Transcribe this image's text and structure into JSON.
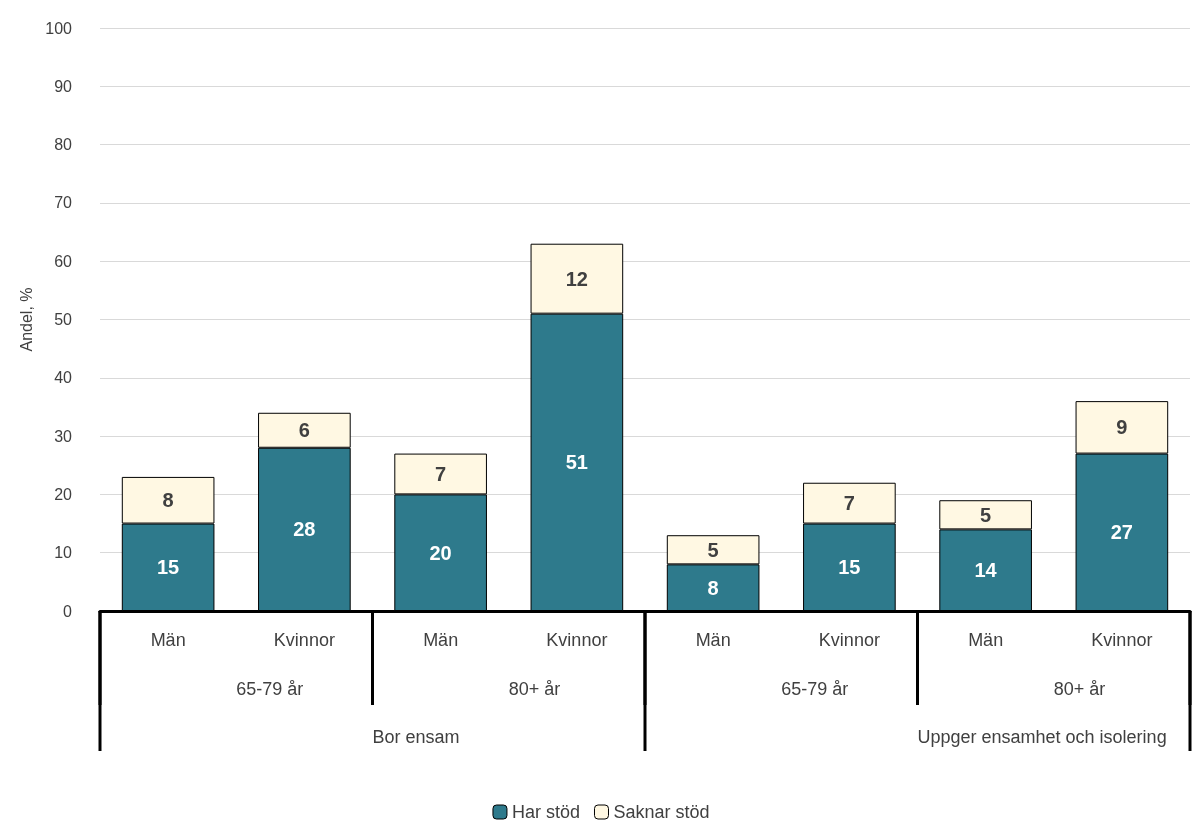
{
  "chart_data": {
    "type": "bar",
    "stacked": true,
    "ylabel": "Andel, %",
    "categories": [
      "Män",
      "Kvinnor",
      "Män",
      "Kvinnor",
      "Män",
      "Kvinnor",
      "Män",
      "Kvinnor"
    ],
    "series": [
      {
        "name": "Har stöd",
        "color": "#2e7a8c",
        "values": [
          15,
          28,
          20,
          51,
          8,
          15,
          14,
          27
        ]
      },
      {
        "name": "Saknar stöd",
        "color": "#fff8e3",
        "values": [
          8,
          6,
          7,
          12,
          5,
          7,
          5,
          9
        ]
      }
    ],
    "annotations": [
      "65-79 år",
      "80+ år",
      "65-79 år",
      "80+ år",
      "Bor ensam",
      "Uppger ensamhet och isolering"
    ],
    "ylim": [
      0,
      100
    ],
    "yticks": [
      0,
      10,
      20,
      30,
      40,
      50,
      60,
      70,
      80,
      90,
      100
    ],
    "grid": "y",
    "legend": "bottom",
    "data_labels": true
  }
}
